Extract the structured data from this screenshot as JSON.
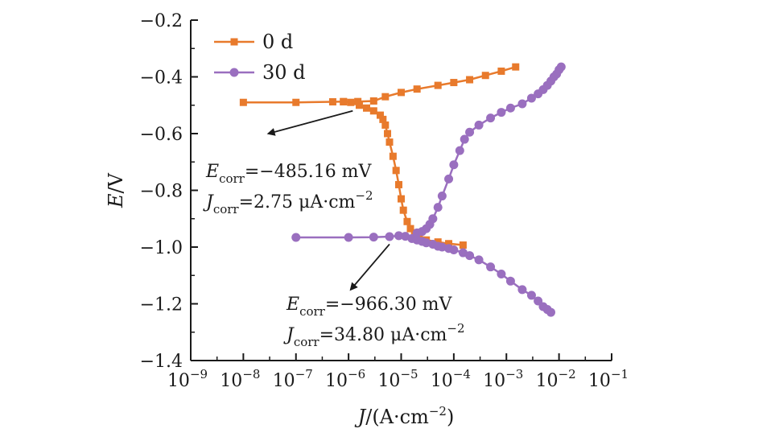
{
  "chart_data": {
    "type": "line",
    "xlabel": "J/(A·cm−2)",
    "ylabel": "E/V",
    "x_scale": "log",
    "xlim": [
      1e-09,
      0.1
    ],
    "ylim": [
      -1.4,
      -0.2
    ],
    "x_ticks": [
      {
        "exp": -9,
        "base": "10",
        "sup": "−9"
      },
      {
        "exp": -8,
        "base": "10",
        "sup": "−8"
      },
      {
        "exp": -7,
        "base": "10",
        "sup": "−7"
      },
      {
        "exp": -6,
        "base": "10",
        "sup": "−6"
      },
      {
        "exp": -5,
        "base": "10",
        "sup": "−5"
      },
      {
        "exp": -4,
        "base": "10",
        "sup": "−4"
      },
      {
        "exp": -3,
        "base": "10",
        "sup": "−3"
      },
      {
        "exp": -2,
        "base": "10",
        "sup": "−2"
      },
      {
        "exp": -1,
        "base": "10",
        "sup": "−1"
      }
    ],
    "y_ticks": [
      {
        "value": -0.2,
        "label": "−0.2"
      },
      {
        "value": -0.4,
        "label": "−0.4"
      },
      {
        "value": -0.6,
        "label": "−0.6"
      },
      {
        "value": -0.8,
        "label": "−0.8"
      },
      {
        "value": -1.0,
        "label": "−1.0"
      },
      {
        "value": -1.2,
        "label": "−1.2"
      },
      {
        "value": -1.4,
        "label": "−1.4"
      }
    ],
    "grid": false,
    "legend_position": "top-left",
    "series": [
      {
        "name": "0 d",
        "color": "#e87a2c",
        "marker": "square",
        "x": [
          1e-08,
          1e-07,
          5e-07,
          8e-07,
          1.1e-06,
          1.6e-06,
          2.2e-06,
          3e-06,
          4e-06,
          4.5e-06,
          5e-06,
          5.5e-06,
          6e-06,
          7e-06,
          8e-06,
          9e-06,
          1e-05,
          1.1e-05,
          1.3e-05,
          1.5e-05,
          1.8e-05,
          2.2e-05,
          3e-05,
          5e-05,
          8e-05,
          0.00015
        ],
        "y": [
          -0.49,
          -0.49,
          -0.488,
          -0.487,
          -0.49,
          -0.5,
          -0.51,
          -0.52,
          -0.535,
          -0.55,
          -0.57,
          -0.6,
          -0.63,
          -0.68,
          -0.73,
          -0.78,
          -0.83,
          -0.87,
          -0.91,
          -0.935,
          -0.95,
          -0.96,
          -0.975,
          -0.982,
          -0.988,
          -0.993
        ],
        "upper_branch": {
          "x": [
            8e-07,
            1.5e-06,
            3e-06,
            5e-06,
            1e-05,
            2e-05,
            5e-05,
            0.0001,
            0.0002,
            0.0004,
            0.0008,
            0.0015
          ],
          "y": [
            -0.488,
            -0.487,
            -0.485,
            -0.47,
            -0.455,
            -0.443,
            -0.43,
            -0.42,
            -0.41,
            -0.395,
            -0.38,
            -0.365
          ]
        }
      },
      {
        "name": "30 d",
        "color": "#9a6fbf",
        "marker": "circle",
        "x": [
          1e-07,
          1e-06,
          3e-06,
          6e-06,
          9e-06,
          1.2e-05,
          1.6e-05,
          2e-05,
          2.5e-05,
          3e-05,
          4e-05,
          5e-05,
          6e-05,
          8e-05,
          0.0001,
          0.00015,
          0.0002,
          0.0003,
          0.0005,
          0.0008,
          0.0012,
          0.002,
          0.003,
          0.004,
          0.005,
          0.006,
          0.007
        ],
        "y": [
          -0.966,
          -0.966,
          -0.965,
          -0.963,
          -0.96,
          -0.962,
          -0.97,
          -0.975,
          -0.98,
          -0.985,
          -0.99,
          -0.997,
          -1.0,
          -1.005,
          -1.01,
          -1.02,
          -1.03,
          -1.045,
          -1.07,
          -1.095,
          -1.12,
          -1.15,
          -1.17,
          -1.19,
          -1.21,
          -1.22,
          -1.23
        ],
        "upper_branch": {
          "x": [
            2e-05,
            2.5e-05,
            3e-05,
            3.5e-05,
            4e-05,
            5e-05,
            6e-05,
            8e-05,
            0.0001,
            0.00013,
            0.00016,
            0.0002,
            0.0003,
            0.0005,
            0.0008,
            0.0012,
            0.002,
            0.003,
            0.004,
            0.005,
            0.006,
            0.007,
            0.008,
            0.009,
            0.01,
            0.011
          ],
          "y": [
            -0.95,
            -0.945,
            -0.935,
            -0.92,
            -0.9,
            -0.86,
            -0.82,
            -0.76,
            -0.71,
            -0.66,
            -0.62,
            -0.595,
            -0.57,
            -0.545,
            -0.525,
            -0.51,
            -0.495,
            -0.475,
            -0.46,
            -0.445,
            -0.43,
            -0.415,
            -0.4,
            -0.39,
            -0.375,
            -0.365
          ]
        }
      }
    ],
    "annotations": [
      {
        "e_sym": "E",
        "e_sub": "corr",
        "e_val": "=−485.16 mV",
        "j_sym": "J",
        "j_sub": "corr",
        "j_val": "=2.75 μA·cm",
        "j_sup": "−2",
        "arrow_to": {
          "x": 3e-08,
          "y": -0.6
        },
        "arrow_from": {
          "x": 1.2e-06,
          "y": -0.52
        }
      },
      {
        "e_sym": "E",
        "e_sub": "corr",
        "e_val": "=−966.30 mV",
        "j_sym": "J",
        "j_sub": "corr",
        "j_val": "=34.80 μA·cm",
        "j_sup": "−2",
        "arrow_to": {
          "x": 1.1e-06,
          "y": -1.15
        },
        "arrow_from": {
          "x": 6e-06,
          "y": -0.99
        }
      }
    ]
  }
}
